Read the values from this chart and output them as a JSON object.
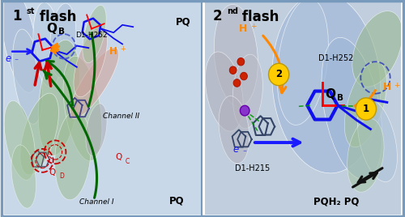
{
  "figsize": [
    5.0,
    2.68
  ],
  "dpi": 100,
  "border_color": "#7799bb",
  "panel1": {
    "bg": "#ccd8e8",
    "title": "1",
    "title_sup": "st",
    "title_flash": " flash"
  },
  "panel2": {
    "bg": "#c8d4e4",
    "title": "2",
    "title_sup": "nd",
    "title_flash": " flash"
  },
  "colors": {
    "helix_blue": "#a8bcd8",
    "helix_blue2": "#b8cce0",
    "helix_green": "#a0c098",
    "helix_green2": "#b0cc9e",
    "helix_pink": "#d8a8a0",
    "mol_blue": "#1010ee",
    "mol_gray": "#666688",
    "arrow_green": "#006600",
    "arrow_red": "#cc0000",
    "arrow_blue": "#1a1aff",
    "arrow_orange": "#ff8800",
    "arrow_black": "#111111",
    "label_blue": "#1a1aff",
    "label_orange": "#ff8800",
    "label_red": "#cc0000",
    "circle_red": "#cc0000",
    "dashed_blue": "#3355bb",
    "green_dashed": "#009900",
    "purple": "#8833cc",
    "red_dot": "#cc2200",
    "badge_yellow": "#ffcc00"
  }
}
